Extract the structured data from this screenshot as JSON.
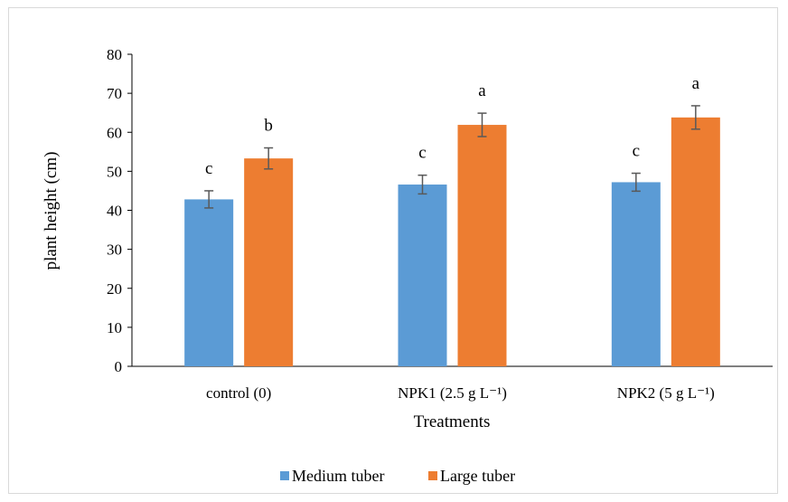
{
  "chart_data": {
    "type": "bar",
    "categories": [
      "control (0)",
      "NPK1 (2.5 g L⁻¹)",
      "NPK2 (5 g L⁻¹)"
    ],
    "series": [
      {
        "name": "Medium tuber",
        "color": "#5b9bd5",
        "values": [
          42.8,
          46.6,
          47.2
        ],
        "errors": [
          2.2,
          2.4,
          2.3
        ],
        "letters": [
          "c",
          "c",
          "c"
        ]
      },
      {
        "name": "Large tuber",
        "color": "#ed7d31",
        "values": [
          53.3,
          61.9,
          63.8
        ],
        "errors": [
          2.7,
          3.0,
          3.0
        ],
        "letters": [
          "b",
          "a",
          "a"
        ]
      }
    ],
    "xlabel": "Treatments",
    "ylabel": "plant  height (cm)",
    "ylim": [
      0,
      80
    ],
    "yticks": [
      "0",
      "10",
      "20",
      "30",
      "40",
      "50",
      "60",
      "70",
      "80"
    ],
    "grid": false,
    "legend_position": "bottom"
  }
}
